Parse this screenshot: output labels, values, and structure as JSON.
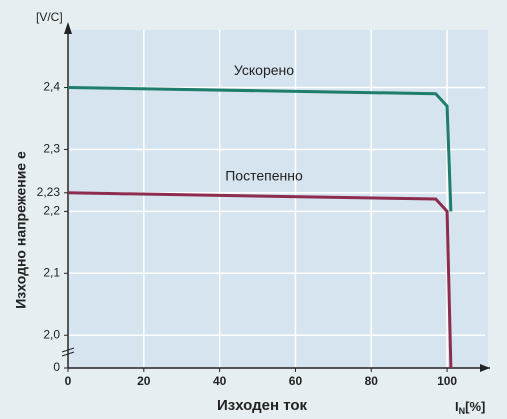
{
  "chart_data": {
    "type": "line",
    "y_unit": "[V/C]",
    "y_label": "Изходно напрежение е",
    "x_label": "Изходен ток",
    "x_unit": {
      "main": "I",
      "sub": "N",
      "rest": "[%]"
    },
    "x": [
      0,
      97,
      100,
      101
    ],
    "series": [
      {
        "name": "Ускорено",
        "color": "#1f7d6b",
        "values": [
          2.4,
          2.39,
          2.37,
          2.2
        ]
      },
      {
        "name": "Постепенно",
        "color": "#8e2c50",
        "values": [
          2.23,
          2.22,
          2.2,
          0
        ]
      }
    ],
    "xlim": [
      0,
      110
    ],
    "xticks": [
      0,
      20,
      40,
      60,
      80,
      100
    ],
    "ylim": [
      1.96,
      2.48
    ],
    "y_break": true,
    "yticks": [
      0,
      {
        "value": 2.0,
        "label": "2,0"
      },
      {
        "value": 2.1,
        "label": "2,1"
      },
      {
        "value": 2.2,
        "label": "2,2"
      },
      {
        "value": 2.23,
        "label": "2,23"
      },
      {
        "value": 2.3,
        "label": "2,3"
      },
      {
        "value": 2.4,
        "label": "2,4"
      }
    ],
    "grid": true
  }
}
